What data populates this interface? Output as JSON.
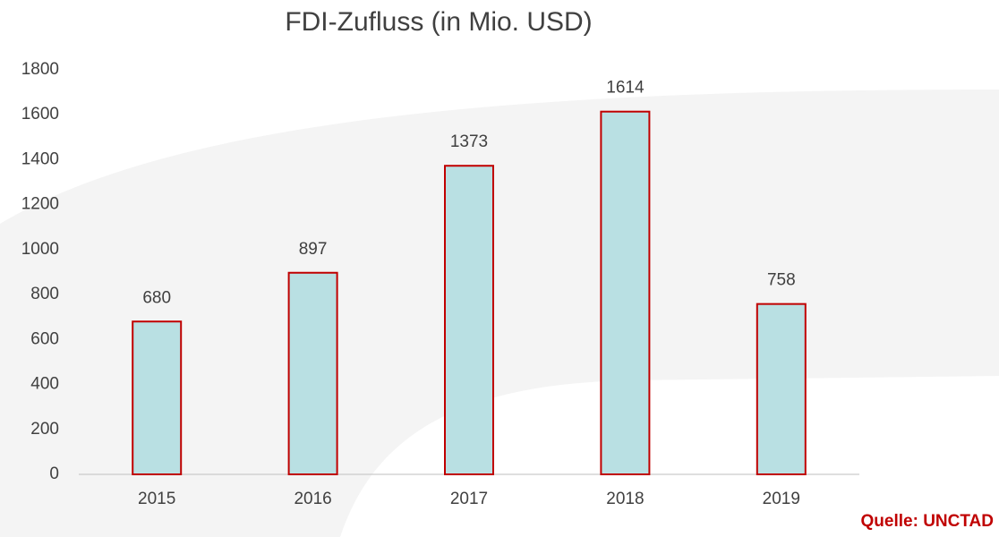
{
  "chart_data": {
    "type": "bar",
    "title": "FDI-Zufluss (in Mio. USD)",
    "categories": [
      "2015",
      "2016",
      "2017",
      "2018",
      "2019"
    ],
    "values": [
      680,
      897,
      1373,
      1614,
      758
    ],
    "color": "#b9e0e3",
    "edge_color": "#c00000",
    "ylim": [
      0,
      1800
    ],
    "yticks": [
      0,
      200,
      400,
      600,
      800,
      1000,
      1200,
      1400,
      1600,
      1800
    ],
    "grid": false,
    "data_labels": true,
    "source": "Quelle: UNCTAD"
  }
}
